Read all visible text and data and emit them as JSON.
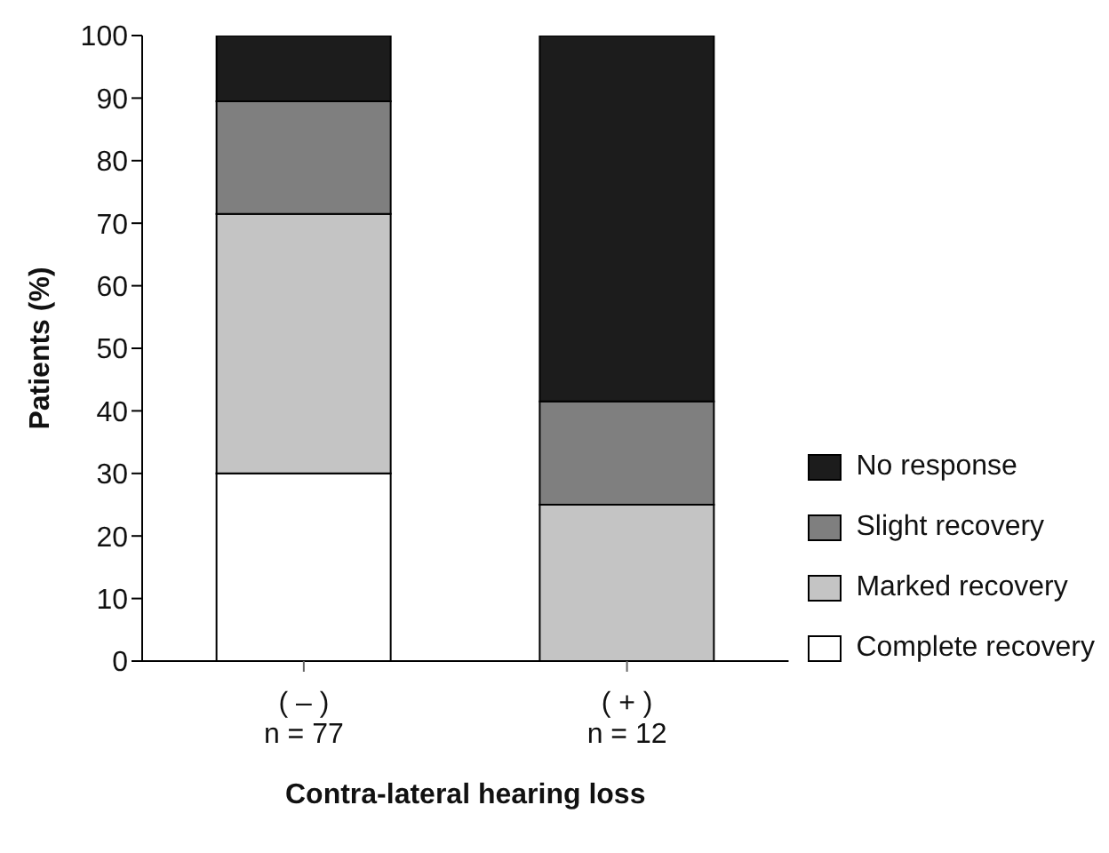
{
  "chart_data": {
    "type": "bar",
    "stacked": true,
    "xlabel": "Contra-lateral hearing loss",
    "ylabel": "Patients (%)",
    "categories": [
      "( – )\nn = 77",
      "( + )\nn = 12"
    ],
    "series": [
      {
        "name": "Complete recovery",
        "color": "#ffffff",
        "values": [
          30,
          0
        ]
      },
      {
        "name": "Marked recovery",
        "color": "#c4c4c4",
        "values": [
          41.5,
          25
        ]
      },
      {
        "name": "Slight recovery",
        "color": "#7f7f7f",
        "values": [
          18,
          16.5
        ]
      },
      {
        "name": "No response",
        "color": "#1c1c1c",
        "values": [
          10.5,
          58.5
        ]
      }
    ],
    "ylim": [
      0,
      100
    ],
    "yticks": [
      0,
      10,
      20,
      30,
      40,
      50,
      60,
      70,
      80,
      90,
      100
    ],
    "grid": false,
    "legend": "right"
  }
}
